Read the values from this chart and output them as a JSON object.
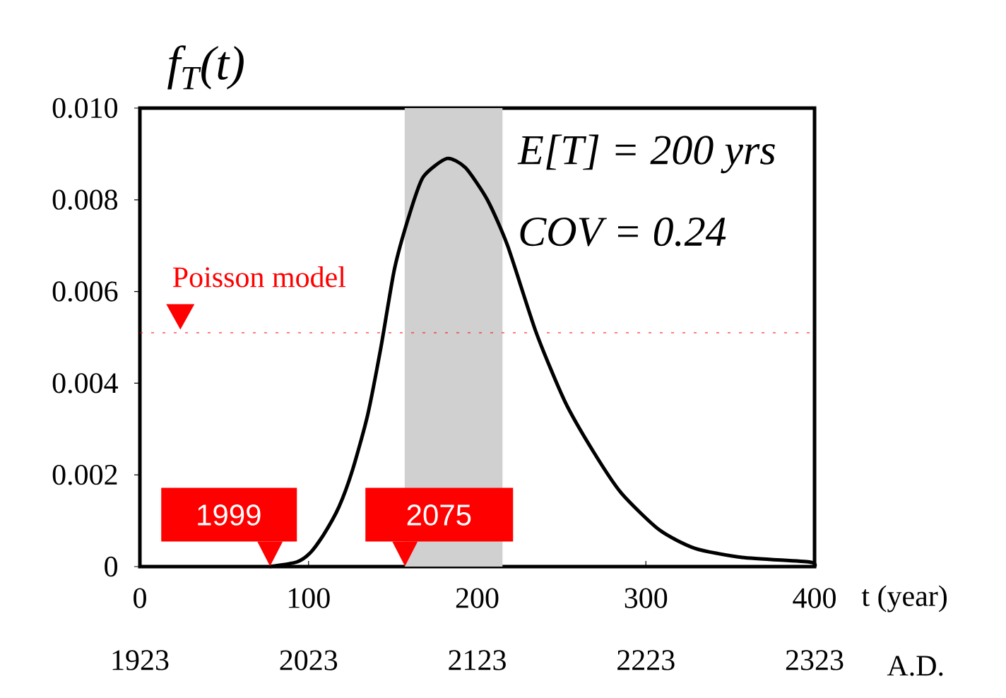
{
  "chart_data": {
    "type": "line",
    "ylabel": "f$_{T}$(t)",
    "xlabel": "t (year)",
    "x2label": "A.D.",
    "x": [
      77,
      93,
      101,
      109,
      118,
      126,
      135,
      143,
      151,
      160,
      168,
      182,
      193,
      206,
      218,
      235,
      252,
      269,
      285.5,
      308,
      329,
      357,
      397,
      400
    ],
    "series": [
      {
        "color": "#000000",
        "values": [
          0,
          0.0001,
          0.0003,
          0.0007,
          0.0013,
          0.0021,
          0.0033,
          0.0048,
          0.0065,
          0.0077,
          0.0085,
          0.0089,
          0.0087,
          0.008,
          0.007,
          0.0051,
          0.0036,
          0.0025,
          0.0016,
          0.0008,
          0.0004,
          0.0002,
          0.0001,
          0
        ]
      }
    ],
    "xlim": [
      0,
      400
    ],
    "xticks": [
      0,
      100,
      200,
      300,
      400
    ],
    "ylim": [
      0,
      0.01
    ],
    "yticks": [
      0,
      {
        "value": 0.002,
        "label": "0.002"
      },
      {
        "value": 0.004,
        "label": "0.004"
      },
      {
        "value": 0.006,
        "label": "0.006"
      },
      {
        "value": 0.008,
        "label": "0.008"
      },
      {
        "value": 0.01,
        "label": "0.010"
      }
    ],
    "x2lim": [
      1923,
      2323
    ],
    "x2ticks": [
      1923,
      2023,
      2123,
      2223,
      2323
    ],
    "ref_lines": [
      {
        "axis": "y",
        "value": 0.0051,
        "label": "Poisson model",
        "color": "#ff0000",
        "line_style": "dotted"
      }
    ],
    "bands": [
      {
        "axis": "x",
        "from": 157,
        "to": 215,
        "color": "#d0d0d0"
      }
    ],
    "annotations": [
      "E[T] = 200 yrs",
      "COV = 0.24",
      {
        "text": "1999",
        "x": 77,
        "y": 0
      },
      {
        "text": "2075",
        "x": 157,
        "y": 0
      }
    ],
    "marker": "none",
    "line_style": "solid",
    "grid": false
  }
}
